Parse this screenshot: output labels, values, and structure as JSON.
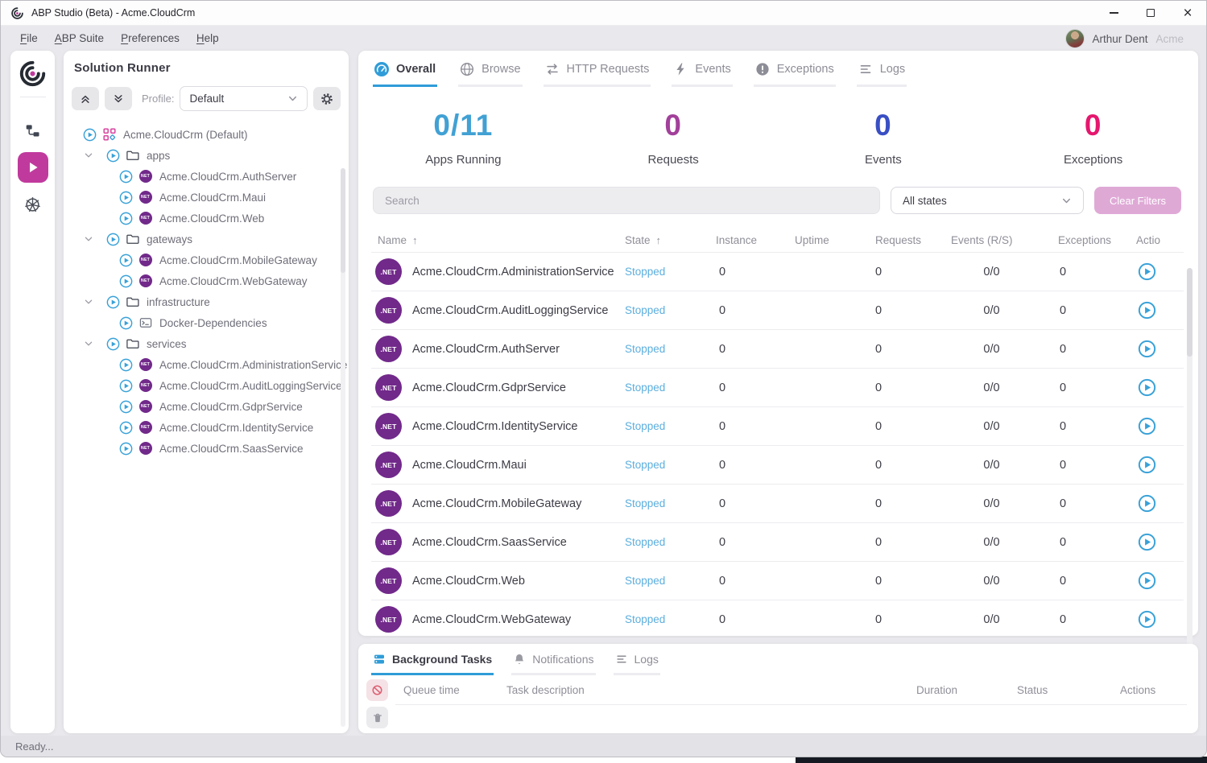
{
  "window": {
    "title": "ABP Studio (Beta) - Acme.CloudCrm",
    "controls": [
      "minimize",
      "maximize",
      "close"
    ]
  },
  "menu": {
    "items": [
      "File",
      "ABP Suite",
      "Preferences",
      "Help"
    ],
    "user_name": "Arthur Dent",
    "user_org": "Acme"
  },
  "activity_bar": {
    "items": [
      "abp-logo",
      "solution-explorer",
      "solution-runner",
      "kubernetes"
    ],
    "active_item": "solution-runner"
  },
  "solution_panel": {
    "title": "Solution Runner",
    "profile_label": "Profile:",
    "profile_value": "Default",
    "tree": [
      {
        "label": "Acme.CloudCrm (Default)",
        "icon": "solution",
        "level": 0,
        "chevron": false
      },
      {
        "label": "apps",
        "icon": "folder",
        "level": 1,
        "chevron": true
      },
      {
        "label": "Acme.CloudCrm.AuthServer",
        "icon": "dotnet",
        "level": 2,
        "chevron": false
      },
      {
        "label": "Acme.CloudCrm.Maui",
        "icon": "dotnet",
        "level": 2,
        "chevron": false
      },
      {
        "label": "Acme.CloudCrm.Web",
        "icon": "dotnet",
        "level": 2,
        "chevron": false
      },
      {
        "label": "gateways",
        "icon": "folder",
        "level": 1,
        "chevron": true
      },
      {
        "label": "Acme.CloudCrm.MobileGateway",
        "icon": "dotnet",
        "level": 2,
        "chevron": false
      },
      {
        "label": "Acme.CloudCrm.WebGateway",
        "icon": "dotnet",
        "level": 2,
        "chevron": false
      },
      {
        "label": "infrastructure",
        "icon": "folder",
        "level": 1,
        "chevron": true
      },
      {
        "label": "Docker-Dependencies",
        "icon": "terminal",
        "level": 2,
        "chevron": false
      },
      {
        "label": "services",
        "icon": "folder",
        "level": 1,
        "chevron": true
      },
      {
        "label": "Acme.CloudCrm.AdministrationService",
        "icon": "dotnet",
        "level": 2,
        "chevron": false
      },
      {
        "label": "Acme.CloudCrm.AuditLoggingService",
        "icon": "dotnet",
        "level": 2,
        "chevron": false
      },
      {
        "label": "Acme.CloudCrm.GdprService",
        "icon": "dotnet",
        "level": 2,
        "chevron": false
      },
      {
        "label": "Acme.CloudCrm.IdentityService",
        "icon": "dotnet",
        "level": 2,
        "chevron": false
      },
      {
        "label": "Acme.CloudCrm.SaasService",
        "icon": "dotnet",
        "level": 2,
        "chevron": false
      }
    ]
  },
  "main": {
    "tabs": [
      {
        "label": "Overall",
        "icon": "gauge",
        "active": true
      },
      {
        "label": "Browse",
        "icon": "globe",
        "active": false
      },
      {
        "label": "HTTP Requests",
        "icon": "arrows",
        "active": false
      },
      {
        "label": "Events",
        "icon": "bolt",
        "active": false
      },
      {
        "label": "Exceptions",
        "icon": "exclamation",
        "active": false
      },
      {
        "label": "Logs",
        "icon": "lines",
        "active": false
      }
    ],
    "stats": [
      {
        "value": "0/11",
        "label": "Apps Running",
        "color": "#41a1d4"
      },
      {
        "value": "0",
        "label": "Requests",
        "color": "#a2409a"
      },
      {
        "value": "0",
        "label": "Events",
        "color": "#3a4fc4"
      },
      {
        "value": "0",
        "label": "Exceptions",
        "color": "#e5176e"
      }
    ],
    "search_placeholder": "Search",
    "state_filter_value": "All states",
    "clear_filters_label": "Clear Filters",
    "table": {
      "columns": [
        "Name",
        "State",
        "Instance",
        "Uptime",
        "Requests",
        "Events (R/S)",
        "Exceptions",
        "Actions"
      ],
      "sorted_columns": [
        "Name",
        "State"
      ],
      "rows": [
        {
          "name": "Acme.CloudCrm.AdministrationService",
          "state": "Stopped",
          "instance": "0",
          "uptime": "",
          "requests": "0",
          "events": "0/0",
          "exceptions": "0"
        },
        {
          "name": "Acme.CloudCrm.AuditLoggingService",
          "state": "Stopped",
          "instance": "0",
          "uptime": "",
          "requests": "0",
          "events": "0/0",
          "exceptions": "0"
        },
        {
          "name": "Acme.CloudCrm.AuthServer",
          "state": "Stopped",
          "instance": "0",
          "uptime": "",
          "requests": "0",
          "events": "0/0",
          "exceptions": "0"
        },
        {
          "name": "Acme.CloudCrm.GdprService",
          "state": "Stopped",
          "instance": "0",
          "uptime": "",
          "requests": "0",
          "events": "0/0",
          "exceptions": "0"
        },
        {
          "name": "Acme.CloudCrm.IdentityService",
          "state": "Stopped",
          "instance": "0",
          "uptime": "",
          "requests": "0",
          "events": "0/0",
          "exceptions": "0"
        },
        {
          "name": "Acme.CloudCrm.Maui",
          "state": "Stopped",
          "instance": "0",
          "uptime": "",
          "requests": "0",
          "events": "0/0",
          "exceptions": "0"
        },
        {
          "name": "Acme.CloudCrm.MobileGateway",
          "state": "Stopped",
          "instance": "0",
          "uptime": "",
          "requests": "0",
          "events": "0/0",
          "exceptions": "0"
        },
        {
          "name": "Acme.CloudCrm.SaasService",
          "state": "Stopped",
          "instance": "0",
          "uptime": "",
          "requests": "0",
          "events": "0/0",
          "exceptions": "0"
        },
        {
          "name": "Acme.CloudCrm.Web",
          "state": "Stopped",
          "instance": "0",
          "uptime": "",
          "requests": "0",
          "events": "0/0",
          "exceptions": "0"
        },
        {
          "name": "Acme.CloudCrm.WebGateway",
          "state": "Stopped",
          "instance": "0",
          "uptime": "",
          "requests": "0",
          "events": "0/0",
          "exceptions": "0"
        }
      ]
    }
  },
  "bottom_panel": {
    "tabs": [
      {
        "label": "Background Tasks",
        "icon": "tasks",
        "active": true
      },
      {
        "label": "Notifications",
        "icon": "bell",
        "active": false
      },
      {
        "label": "Logs",
        "icon": "lines",
        "active": false
      }
    ],
    "columns": [
      "Queue time",
      "Task description",
      "Duration",
      "Status",
      "Actions"
    ]
  },
  "status_bar": {
    "text": "Ready..."
  },
  "colors": {
    "accent_blue": "#2f9cd8",
    "accent_magenta": "#c03a9d",
    "dotnet_purple": "#71298a",
    "stopped_blue": "#5caede"
  }
}
